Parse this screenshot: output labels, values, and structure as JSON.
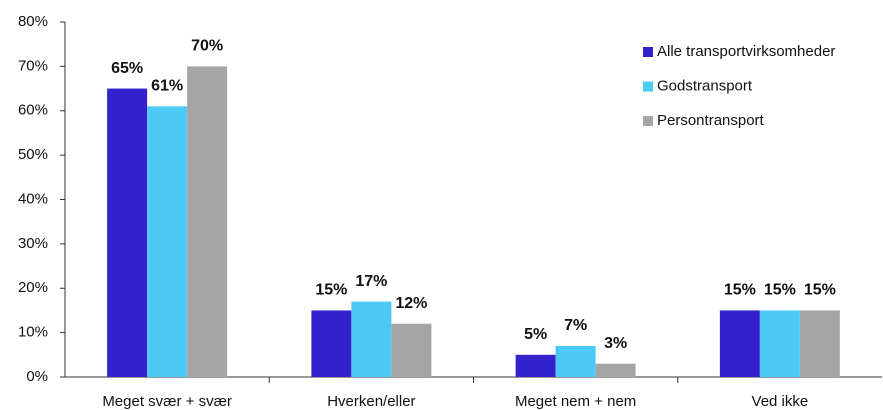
{
  "chart_data": {
    "type": "bar",
    "categories": [
      "Meget svær + svær",
      "Hverken/eller",
      "Meget nem + nem",
      "Ved ikke"
    ],
    "series": [
      {
        "name": "Alle transportvirksomheder",
        "color": "#3322cc",
        "values": [
          65,
          15,
          5,
          15
        ],
        "value_labels": [
          "65%",
          "15%",
          "5%",
          "15%"
        ]
      },
      {
        "name": "Godstransport",
        "color": "#4dc9f6",
        "values": [
          61,
          17,
          7,
          15
        ],
        "value_labels": [
          "61%",
          "17%",
          "7%",
          "15%"
        ]
      },
      {
        "name": "Persontransport",
        "color": "#a5a5a5",
        "values": [
          70,
          12,
          3,
          15
        ],
        "value_labels": [
          "70%",
          "12%",
          "3%",
          "15%"
        ]
      }
    ],
    "ylim": [
      0,
      80
    ],
    "yticks": [
      {
        "value": 0,
        "label": "0%"
      },
      {
        "value": 10,
        "label": "10%"
      },
      {
        "value": 20,
        "label": "20%"
      },
      {
        "value": 30,
        "label": "30%"
      },
      {
        "value": 40,
        "label": "40%"
      },
      {
        "value": 50,
        "label": "50%"
      },
      {
        "value": 60,
        "label": "60%"
      },
      {
        "value": 70,
        "label": "70%"
      },
      {
        "value": 80,
        "label": "80%"
      }
    ],
    "grid": false,
    "legend": "top-right"
  }
}
